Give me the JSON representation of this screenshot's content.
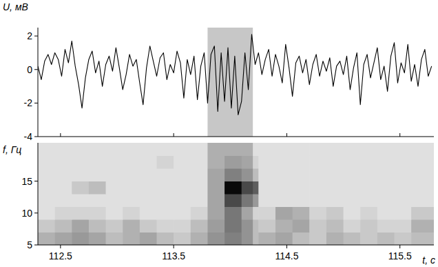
{
  "chart_data": [
    {
      "type": "line",
      "y_label": "U, мВ",
      "color": "#000000",
      "xlim": [
        112.3,
        115.8
      ],
      "xticks": [
        112.5,
        113.5,
        114.5,
        115.5
      ],
      "ylim": [
        -4,
        2.5
      ],
      "yticks": [
        -4,
        -2,
        0,
        2
      ],
      "highlight": [
        113.8,
        114.2
      ],
      "x": [
        112.3,
        112.33,
        112.36,
        112.39,
        112.42,
        112.45,
        112.48,
        112.51,
        112.54,
        112.57,
        112.6,
        112.63,
        112.66,
        112.69,
        112.72,
        112.75,
        112.78,
        112.81,
        112.84,
        112.87,
        112.9,
        112.93,
        112.96,
        112.99,
        113.02,
        113.05,
        113.08,
        113.11,
        113.14,
        113.17,
        113.2,
        113.23,
        113.26,
        113.29,
        113.32,
        113.35,
        113.38,
        113.41,
        113.44,
        113.47,
        113.5,
        113.53,
        113.56,
        113.59,
        113.62,
        113.65,
        113.68,
        113.71,
        113.74,
        113.77,
        113.8,
        113.83,
        113.86,
        113.89,
        113.92,
        113.95,
        113.98,
        114.01,
        114.04,
        114.07,
        114.1,
        114.13,
        114.16,
        114.19,
        114.22,
        114.25,
        114.28,
        114.31,
        114.34,
        114.37,
        114.4,
        114.43,
        114.46,
        114.49,
        114.52,
        114.55,
        114.58,
        114.61,
        114.64,
        114.67,
        114.7,
        114.73,
        114.76,
        114.79,
        114.82,
        114.85,
        114.88,
        114.91,
        114.94,
        114.97,
        115.0,
        115.03,
        115.06,
        115.09,
        115.12,
        115.15,
        115.18,
        115.21,
        115.24,
        115.27,
        115.3,
        115.33,
        115.36,
        115.39,
        115.42,
        115.45,
        115.48,
        115.51,
        115.54,
        115.57,
        115.6,
        115.63,
        115.66,
        115.69,
        115.72,
        115.75,
        115.78
      ],
      "values": [
        0.2,
        -0.6,
        0.5,
        0.9,
        0.3,
        1.0,
        0.6,
        -0.4,
        1.2,
        0.4,
        1.7,
        0.2,
        -0.9,
        -2.3,
        -0.5,
        0.6,
        1.1,
        -0.2,
        0.5,
        -1.0,
        0.3,
        0.8,
        -0.1,
        1.3,
        0.1,
        -1.2,
        -0.3,
        0.9,
        0.2,
        0.6,
        -0.8,
        -2.1,
        0.1,
        1.4,
        0.5,
        -0.4,
        0.7,
        1.0,
        -0.6,
        0.3,
        -0.2,
        1.1,
        0.4,
        -1.7,
        0.6,
        -0.3,
        0.8,
        -1.8,
        0.2,
        1.0,
        -2.0,
        0.9,
        1.4,
        -2.5,
        1.0,
        -1.9,
        1.3,
        -2.3,
        0.8,
        -2.7,
        -1.9,
        1.0,
        -1.2,
        2.1,
        0.3,
        1.0,
        -0.3,
        0.6,
        1.2,
        -0.4,
        0.9,
        0.2,
        -0.8,
        1.5,
        0.1,
        -1.6,
        0.4,
        0.8,
        -0.2,
        0.6,
        -0.9,
        0.3,
        0.9,
        -0.4,
        0.5,
        -0.1,
        0.7,
        -1.0,
        0.2,
        0.5,
        -0.3,
        0.8,
        -1.2,
        0.1,
        1.0,
        -2.1,
        0.3,
        0.9,
        -0.5,
        0.4,
        1.3,
        -0.6,
        0.2,
        -1.3,
        0.8,
        1.6,
        -0.8,
        0.4,
        -0.2,
        1.5,
        -0.7,
        0.3,
        -1.0,
        0.6,
        1.2,
        -0.4,
        0.2
      ]
    },
    {
      "type": "heatmap",
      "y_label": "f, Гц",
      "x_label": "t, с",
      "xlim": [
        112.3,
        115.8
      ],
      "xticks": [
        112.5,
        113.5,
        114.5,
        115.5
      ],
      "ylim": [
        5,
        21
      ],
      "yticks": [
        5,
        10,
        15
      ],
      "x_edges": [
        112.3,
        112.45,
        112.6,
        112.75,
        112.9,
        113.05,
        113.2,
        113.35,
        113.5,
        113.65,
        113.8,
        113.95,
        114.1,
        114.25,
        114.4,
        114.55,
        114.7,
        114.85,
        115.0,
        115.15,
        115.3,
        115.45,
        115.6,
        115.8
      ],
      "y_edges": [
        5,
        7,
        9,
        11,
        13,
        15,
        17,
        19,
        21
      ],
      "cells": [
        [
          0.25,
          0.3,
          0.35,
          0.3,
          0.2,
          0.25,
          0.3,
          0.2,
          0.15,
          0.25,
          0.2,
          0.3,
          0.2,
          0.25,
          0.3,
          0.2,
          0.15,
          0.25,
          0.2,
          0.15,
          0.2,
          0.15,
          0.2
        ],
        [
          0.15,
          0.2,
          0.3,
          0.2,
          0.15,
          0.25,
          0.15,
          0.1,
          0.1,
          0.2,
          0.15,
          0.35,
          0.2,
          0.15,
          0.25,
          0.3,
          0.15,
          0.2,
          0.1,
          0.15,
          0.1,
          0.1,
          0.25
        ],
        [
          0.05,
          0.1,
          0.1,
          0.1,
          0.05,
          0.1,
          0.05,
          0.05,
          0.05,
          0.1,
          0.1,
          0.35,
          0.1,
          0.1,
          0.3,
          0.25,
          0.1,
          0.15,
          0.05,
          0.1,
          0.05,
          0.05,
          0.15
        ],
        [
          0.05,
          0.05,
          0.05,
          0.05,
          0.05,
          0.05,
          0.05,
          0.05,
          0.05,
          0.05,
          0.1,
          0.6,
          0.35,
          0.05,
          0.05,
          0.05,
          0.05,
          0.05,
          0.05,
          0.05,
          0.05,
          0.05,
          0.05
        ],
        [
          0.05,
          0.05,
          0.15,
          0.2,
          0.05,
          0.05,
          0.05,
          0.05,
          0.05,
          0.05,
          0.1,
          0.95,
          0.6,
          0.05,
          0.05,
          0.05,
          0.05,
          0.05,
          0.05,
          0.05,
          0.05,
          0.05,
          0.05
        ],
        [
          0.05,
          0.05,
          0.05,
          0.05,
          0.05,
          0.05,
          0.05,
          0.05,
          0.05,
          0.05,
          0.1,
          0.3,
          0.2,
          0.05,
          0.05,
          0.05,
          0.05,
          0.05,
          0.05,
          0.05,
          0.05,
          0.05,
          0.05
        ],
        [
          0.05,
          0.05,
          0.05,
          0.05,
          0.05,
          0.05,
          0.05,
          0.1,
          0.05,
          0.05,
          0.05,
          0.15,
          0.1,
          0.05,
          0.05,
          0.05,
          0.05,
          0.05,
          0.05,
          0.05,
          0.05,
          0.05,
          0.05
        ],
        [
          0.05,
          0.05,
          0.05,
          0.05,
          0.05,
          0.05,
          0.05,
          0.05,
          0.05,
          0.05,
          0.05,
          0.05,
          0.05,
          0.05,
          0.05,
          0.05,
          0.05,
          0.05,
          0.05,
          0.05,
          0.05,
          0.05,
          0.05
        ]
      ]
    }
  ]
}
